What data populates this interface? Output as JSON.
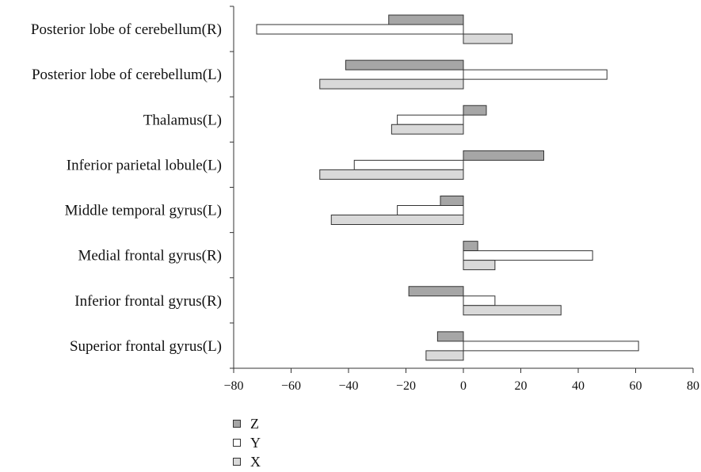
{
  "chart_data": {
    "type": "bar",
    "orientation": "horizontal",
    "title": "",
    "xlabel": "",
    "ylabel": "",
    "xlim": [
      -80,
      80
    ],
    "xticks": [
      -80,
      -60,
      -40,
      -20,
      0,
      20,
      40,
      60,
      80
    ],
    "grid": false,
    "legend_position": "bottom-left",
    "categories": [
      "Posterior lobe of cerebellum(R)",
      "Posterior lobe of cerebellum(L)",
      "Thalamus(L)",
      "Inferior parietal lobule(L)",
      "Middle temporal gyrus(L)",
      "Medial frontal gyrus(R)",
      "Inferior frontal gyrus(R)",
      "Superior frontal gyrus(L)"
    ],
    "series": [
      {
        "name": "Z",
        "color": "#a6a6a6",
        "values": [
          -26,
          -41,
          8,
          28,
          -8,
          5,
          -19,
          -9
        ]
      },
      {
        "name": "Y",
        "color": "#ffffff",
        "values": [
          -72,
          50,
          -23,
          -38,
          -23,
          45,
          11,
          61
        ]
      },
      {
        "name": "X",
        "color": "#d9d9d9",
        "values": [
          17,
          -50,
          -25,
          -50,
          -46,
          11,
          34,
          -13
        ]
      }
    ]
  }
}
